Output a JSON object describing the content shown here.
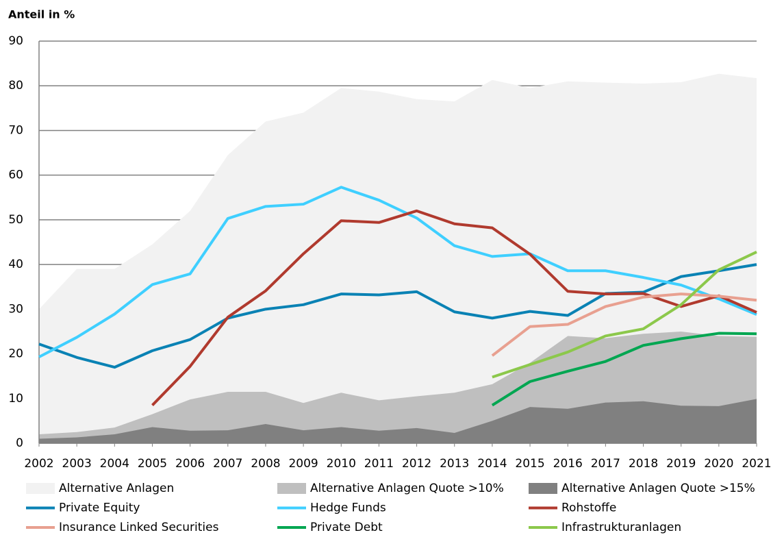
{
  "chart_data": {
    "type": "line",
    "title": "Anteil in %",
    "categories": [
      "2002",
      "2003",
      "2004",
      "2005",
      "2006",
      "2007",
      "2008",
      "2009",
      "2010",
      "2011",
      "2012",
      "2013",
      "2014",
      "2015",
      "2016",
      "2017",
      "2018",
      "2019",
      "2020",
      "2021"
    ],
    "ylim": [
      0,
      90
    ],
    "yticks": [
      0,
      10,
      20,
      30,
      40,
      50,
      60,
      70,
      80,
      90
    ],
    "grid": true,
    "series": [
      {
        "name": "Alternative Anlagen",
        "type": "area",
        "color": "#f2f2f2",
        "values": [
          30,
          39,
          39,
          44.5,
          52,
          64.5,
          72,
          74,
          79.5,
          78.7,
          77,
          76.5,
          81.3,
          79.5,
          81,
          80.7,
          80.5,
          80.8,
          82.7,
          81.7
        ]
      },
      {
        "name": "Alternative Anlagen Quote >10%",
        "type": "area",
        "color": "#bfbfbf",
        "values": [
          2,
          2.5,
          3.5,
          6.5,
          9.8,
          11.5,
          11.5,
          9,
          11.3,
          9.6,
          10.5,
          11.3,
          13.2,
          18,
          24,
          23.5,
          24.5,
          25,
          24,
          23.8
        ]
      },
      {
        "name": "Alternative Anlagen Quote >15%",
        "type": "area",
        "color": "#808080",
        "values": [
          1,
          1.3,
          2,
          3.6,
          2.8,
          2.9,
          4.3,
          2.9,
          3.6,
          2.8,
          3.4,
          2.3,
          5,
          8.1,
          7.7,
          9.1,
          9.4,
          8.4,
          8.3,
          9.9
        ]
      },
      {
        "name": "Private Equity",
        "type": "line",
        "color": "#0a82b4",
        "values": [
          22.2,
          19.2,
          17,
          20.7,
          23.2,
          28,
          30,
          31,
          33.4,
          33.2,
          33.9,
          29.4,
          28,
          29.5,
          28.6,
          33.5,
          33.8,
          37.3,
          38.6,
          40
        ]
      },
      {
        "name": "Hedge Funds",
        "type": "line",
        "color": "#3fcfff",
        "values": [
          19.3,
          23.7,
          28.9,
          35.5,
          37.9,
          50.3,
          53,
          53.5,
          57.3,
          54.4,
          50.4,
          44.2,
          41.8,
          42.4,
          38.6,
          38.6,
          37.1,
          35.4,
          32.3,
          28.8
        ]
      },
      {
        "name": "Rohstoffe",
        "type": "line",
        "color": "#b03a2e",
        "values": [
          null,
          null,
          null,
          8.5,
          17.2,
          28.2,
          34.1,
          42.4,
          49.8,
          49.4,
          52,
          49.1,
          48.2,
          42.3,
          34,
          33.4,
          33.5,
          30.6,
          33,
          29.3
        ]
      },
      {
        "name": "Insurance Linked Securities",
        "type": "line",
        "color": "#e8a090",
        "values": [
          null,
          null,
          null,
          null,
          null,
          null,
          null,
          null,
          null,
          null,
          null,
          null,
          19.6,
          26.1,
          26.6,
          30.6,
          32.7,
          33.4,
          32.9,
          32
        ]
      },
      {
        "name": "Private Debt",
        "type": "line",
        "color": "#00a651",
        "values": [
          null,
          null,
          null,
          null,
          null,
          null,
          null,
          null,
          null,
          null,
          null,
          null,
          8.5,
          13.8,
          16.1,
          18.3,
          21.9,
          23.4,
          24.6,
          24.5
        ]
      },
      {
        "name": "Infrastrukturanlagen",
        "type": "line",
        "color": "#8cc84b",
        "values": [
          null,
          null,
          null,
          null,
          null,
          null,
          null,
          null,
          null,
          null,
          null,
          null,
          14.8,
          17.6,
          20.4,
          24,
          25.6,
          31,
          38.8,
          42.8
        ]
      }
    ]
  }
}
